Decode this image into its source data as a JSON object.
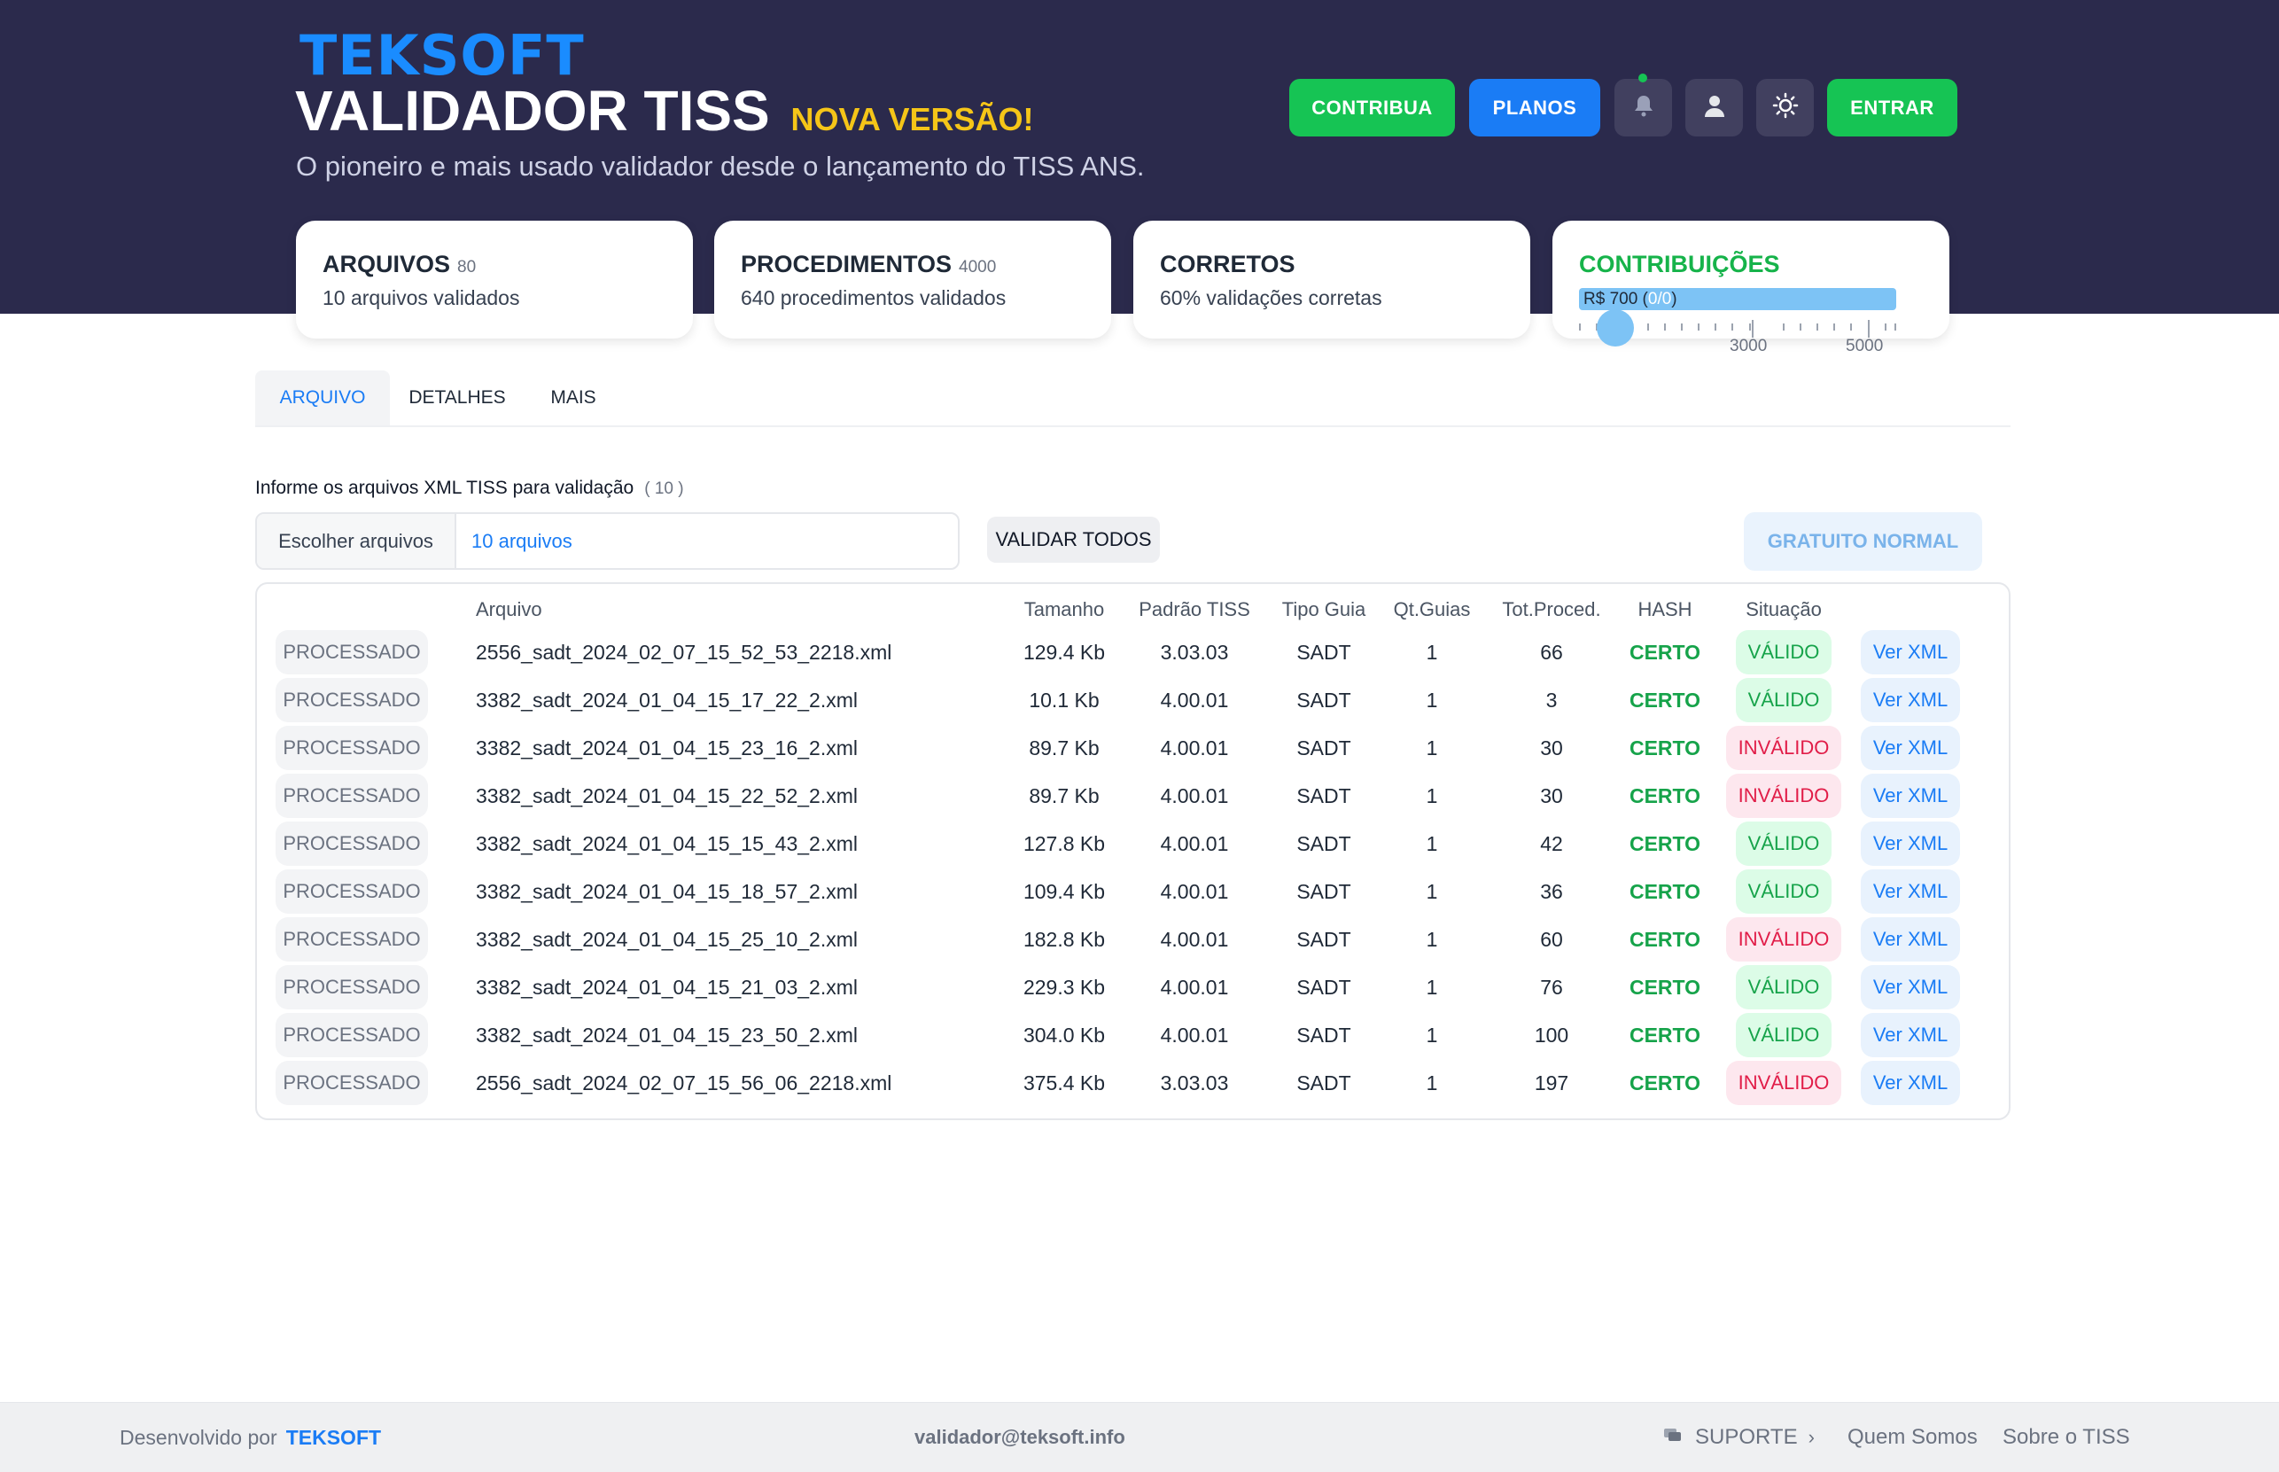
{
  "header": {
    "logo": "TEKSOFT",
    "title": "VALIDADOR TISS",
    "badge": "NOVA VERSÃO!",
    "subtitle": "O pioneiro e mais usado validador desde o lançamento do TISS ANS.",
    "buttons": {
      "contribua": "CONTRIBUA",
      "planos": "PLANOS",
      "entrar": "ENTRAR"
    },
    "icons": [
      "bell-icon",
      "user-icon",
      "sun-icon"
    ],
    "colors": {
      "background": "#2b2a4c",
      "green": "#16c454",
      "blue": "#1a7cf5",
      "badge": "#f5c518"
    }
  },
  "stats": {
    "arquivos": {
      "title": "ARQUIVOS",
      "count": "80",
      "subtitle": "10 arquivos validados"
    },
    "procedimentos": {
      "title": "PROCEDIMENTOS",
      "count": "4000",
      "subtitle": "640 procedimentos validados"
    },
    "corretos": {
      "title": "CORRETOS",
      "subtitle": "60% validações corretas"
    },
    "contribuicoes": {
      "title": "CONTRIBUIÇÕES",
      "bar_text": "R$ 700 (",
      "bar_light": "0/0",
      "bar_end": ")",
      "tick_labels": [
        "3000",
        "5000"
      ]
    }
  },
  "tabs": [
    {
      "label": "ARQUIVO",
      "active": true
    },
    {
      "label": "DETALHES",
      "active": false
    },
    {
      "label": "MAIS",
      "active": false
    }
  ],
  "upload": {
    "label": "Informe os arquivos XML TISS para validação",
    "count": "( 10 )",
    "choose_button": "Escolher arquivos",
    "selected": "10 arquivos",
    "validate_all": "VALIDAR TODOS",
    "plan_button": "GRATUITO NORMAL"
  },
  "table": {
    "columns": [
      "Arquivo",
      "Tamanho",
      "Padrão TISS",
      "Tipo Guia",
      "Qt.Guias",
      "Tot.Proced.",
      "HASH",
      "Situação"
    ],
    "rows": [
      {
        "status": "PROCESSADO",
        "file": "2556_sadt_2024_02_07_15_52_53_2218.xml",
        "size": "129.4 Kb",
        "padrao": "3.03.03",
        "tipo": "SADT",
        "qt": "1",
        "tot": "66",
        "hash": "CERTO",
        "situacao": "VÁLIDO",
        "valid": true,
        "action": "Ver XML"
      },
      {
        "status": "PROCESSADO",
        "file": "3382_sadt_2024_01_04_15_17_22_2.xml",
        "size": "10.1 Kb",
        "padrao": "4.00.01",
        "tipo": "SADT",
        "qt": "1",
        "tot": "3",
        "hash": "CERTO",
        "situacao": "VÁLIDO",
        "valid": true,
        "action": "Ver XML"
      },
      {
        "status": "PROCESSADO",
        "file": "3382_sadt_2024_01_04_15_23_16_2.xml",
        "size": "89.7 Kb",
        "padrao": "4.00.01",
        "tipo": "SADT",
        "qt": "1",
        "tot": "30",
        "hash": "CERTO",
        "situacao": "INVÁLIDO",
        "valid": false,
        "action": "Ver XML"
      },
      {
        "status": "PROCESSADO",
        "file": "3382_sadt_2024_01_04_15_22_52_2.xml",
        "size": "89.7 Kb",
        "padrao": "4.00.01",
        "tipo": "SADT",
        "qt": "1",
        "tot": "30",
        "hash": "CERTO",
        "situacao": "INVÁLIDO",
        "valid": false,
        "action": "Ver XML"
      },
      {
        "status": "PROCESSADO",
        "file": "3382_sadt_2024_01_04_15_15_43_2.xml",
        "size": "127.8 Kb",
        "padrao": "4.00.01",
        "tipo": "SADT",
        "qt": "1",
        "tot": "42",
        "hash": "CERTO",
        "situacao": "VÁLIDO",
        "valid": true,
        "action": "Ver XML"
      },
      {
        "status": "PROCESSADO",
        "file": "3382_sadt_2024_01_04_15_18_57_2.xml",
        "size": "109.4 Kb",
        "padrao": "4.00.01",
        "tipo": "SADT",
        "qt": "1",
        "tot": "36",
        "hash": "CERTO",
        "situacao": "VÁLIDO",
        "valid": true,
        "action": "Ver XML"
      },
      {
        "status": "PROCESSADO",
        "file": "3382_sadt_2024_01_04_15_25_10_2.xml",
        "size": "182.8 Kb",
        "padrao": "4.00.01",
        "tipo": "SADT",
        "qt": "1",
        "tot": "60",
        "hash": "CERTO",
        "situacao": "INVÁLIDO",
        "valid": false,
        "action": "Ver XML"
      },
      {
        "status": "PROCESSADO",
        "file": "3382_sadt_2024_01_04_15_21_03_2.xml",
        "size": "229.3 Kb",
        "padrao": "4.00.01",
        "tipo": "SADT",
        "qt": "1",
        "tot": "76",
        "hash": "CERTO",
        "situacao": "VÁLIDO",
        "valid": true,
        "action": "Ver XML"
      },
      {
        "status": "PROCESSADO",
        "file": "3382_sadt_2024_01_04_15_23_50_2.xml",
        "size": "304.0 Kb",
        "padrao": "4.00.01",
        "tipo": "SADT",
        "qt": "1",
        "tot": "100",
        "hash": "CERTO",
        "situacao": "VÁLIDO",
        "valid": true,
        "action": "Ver XML"
      },
      {
        "status": "PROCESSADO",
        "file": "2556_sadt_2024_02_07_15_56_06_2218.xml",
        "size": "375.4 Kb",
        "padrao": "3.03.03",
        "tipo": "SADT",
        "qt": "1",
        "tot": "197",
        "hash": "CERTO",
        "situacao": "INVÁLIDO",
        "valid": false,
        "action": "Ver XML"
      }
    ]
  },
  "footer": {
    "dev_label": "Desenvolvido por",
    "dev_brand": "TEKSOFT",
    "email": "validador@teksoft.info",
    "suporte": "SUPORTE",
    "quem_somos": "Quem Somos",
    "sobre": "Sobre o TISS"
  }
}
